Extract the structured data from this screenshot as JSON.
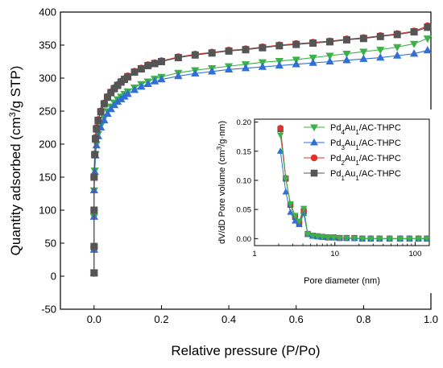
{
  "colors": {
    "red": "#e0302b",
    "green": "#3cb34a",
    "blue": "#2f6fd6",
    "gray": "#555555",
    "axis": "#000000"
  },
  "chart_data": [
    {
      "type": "line",
      "name": "main-isotherm",
      "xlabel": "Relative pressure (P/Po)",
      "ylabel_parts": [
        "Quantity adsorbed (cm",
        "3",
        "/g STP)"
      ],
      "xlim": [
        -0.1,
        1.0
      ],
      "ylim": [
        -50,
        400
      ],
      "xticks": [
        0.0,
        0.2,
        0.4,
        0.6,
        0.8,
        1.0
      ],
      "xtick_labels": [
        "0.0",
        "0.2",
        "0.4",
        "0.6",
        "0.8",
        "1.0"
      ],
      "yticks": [
        -50,
        0,
        50,
        100,
        150,
        200,
        250,
        300,
        350,
        400
      ],
      "ytick_labels": [
        "-50",
        "0",
        "50",
        "100",
        "150",
        "200",
        "250",
        "300",
        "350",
        "400"
      ],
      "series": [
        {
          "key": "pd4au1",
          "color_key": "green",
          "marker": "triangle-down",
          "x": [
            0.0,
            0.0,
            0.0,
            0.0,
            0.002,
            0.004,
            0.007,
            0.012,
            0.02,
            0.03,
            0.04,
            0.05,
            0.06,
            0.07,
            0.08,
            0.09,
            0.1,
            0.12,
            0.14,
            0.16,
            0.18,
            0.2,
            0.25,
            0.3,
            0.35,
            0.4,
            0.45,
            0.5,
            0.55,
            0.6,
            0.65,
            0.7,
            0.75,
            0.8,
            0.85,
            0.9,
            0.95,
            0.99
          ],
          "y": [
            5,
            40,
            90,
            130,
            160,
            185,
            200,
            215,
            228,
            240,
            250,
            257,
            263,
            268,
            272,
            276,
            280,
            286,
            291,
            295,
            299,
            302,
            308,
            312,
            315,
            318,
            321,
            324,
            326,
            328,
            331,
            334,
            337,
            340,
            343,
            347,
            352,
            360
          ]
        },
        {
          "key": "pd3au1",
          "color_key": "blue",
          "marker": "triangle-up",
          "x": [
            0.0,
            0.0,
            0.0,
            0.0,
            0.002,
            0.004,
            0.007,
            0.012,
            0.02,
            0.03,
            0.04,
            0.05,
            0.06,
            0.07,
            0.08,
            0.09,
            0.1,
            0.12,
            0.14,
            0.16,
            0.18,
            0.2,
            0.25,
            0.3,
            0.35,
            0.4,
            0.45,
            0.5,
            0.55,
            0.6,
            0.65,
            0.7,
            0.75,
            0.8,
            0.85,
            0.9,
            0.95,
            0.99
          ],
          "y": [
            5,
            40,
            90,
            130,
            158,
            183,
            198,
            212,
            225,
            236,
            246,
            253,
            259,
            264,
            268,
            272,
            276,
            282,
            287,
            291,
            295,
            298,
            303,
            307,
            310,
            313,
            315,
            317,
            319,
            321,
            323,
            325,
            327,
            329,
            331,
            334,
            337,
            342
          ]
        },
        {
          "key": "pd2au1",
          "color_key": "red",
          "marker": "circle",
          "x": [
            0.0,
            0.0,
            0.0,
            0.0,
            0.002,
            0.004,
            0.007,
            0.012,
            0.02,
            0.03,
            0.04,
            0.05,
            0.06,
            0.07,
            0.08,
            0.09,
            0.1,
            0.12,
            0.14,
            0.16,
            0.18,
            0.2,
            0.25,
            0.3,
            0.35,
            0.4,
            0.45,
            0.5,
            0.55,
            0.6,
            0.65,
            0.7,
            0.75,
            0.8,
            0.85,
            0.9,
            0.95,
            0.99
          ],
          "y": [
            5,
            45,
            100,
            150,
            185,
            210,
            225,
            237,
            250,
            262,
            272,
            279,
            285,
            290,
            295,
            299,
            303,
            310,
            315,
            320,
            323,
            326,
            332,
            336,
            339,
            342,
            344,
            347,
            350,
            352,
            354,
            356,
            359,
            361,
            364,
            367,
            371,
            379
          ]
        },
        {
          "key": "pd1au1",
          "color_key": "gray",
          "marker": "square",
          "x": [
            0.0,
            0.0,
            0.0,
            0.0,
            0.002,
            0.004,
            0.007,
            0.012,
            0.02,
            0.03,
            0.04,
            0.05,
            0.06,
            0.07,
            0.08,
            0.09,
            0.1,
            0.12,
            0.14,
            0.16,
            0.18,
            0.2,
            0.25,
            0.3,
            0.35,
            0.4,
            0.45,
            0.5,
            0.55,
            0.6,
            0.65,
            0.7,
            0.75,
            0.8,
            0.85,
            0.9,
            0.95,
            0.99
          ],
          "y": [
            5,
            45,
            100,
            150,
            184,
            208,
            223,
            236,
            249,
            261,
            271,
            278,
            284,
            289,
            294,
            298,
            302,
            309,
            314,
            319,
            322,
            325,
            331,
            335,
            338,
            341,
            343,
            346,
            349,
            351,
            353,
            355,
            358,
            360,
            363,
            366,
            370,
            377
          ]
        }
      ]
    },
    {
      "type": "line",
      "name": "inset-pore-distribution",
      "xscale": "log",
      "xlabel": "Pore diameter (nm)",
      "ylabel_parts": [
        "dV/dD Pore volume (cm",
        "3",
        "/g·nm)"
      ],
      "xlim": [
        1,
        150
      ],
      "ylim": [
        -0.012,
        0.205
      ],
      "xticks": [
        1,
        10,
        100
      ],
      "xtick_labels": [
        "1",
        "10",
        "100"
      ],
      "yticks": [
        0.0,
        0.05,
        0.1,
        0.15,
        0.2
      ],
      "ytick_labels": [
        "0.00",
        "0.05",
        "0.10",
        "0.15",
        "0.20"
      ],
      "legend_position": "top-right",
      "series": [
        {
          "key": "pd4au1",
          "color_key": "green",
          "marker": "triangle-down",
          "name_parts": [
            "Pd",
            "4",
            "Au",
            "1",
            "/AC-THPC"
          ],
          "x": [
            2.1,
            2.45,
            2.8,
            3.2,
            3.6,
            4.1,
            4.6,
            5.3,
            6.1,
            7.0,
            8.2,
            9.7,
            11.5,
            14,
            17.5,
            22,
            28,
            36,
            48,
            65,
            85,
            110,
            140
          ],
          "y": [
            0.178,
            0.103,
            0.06,
            0.04,
            0.03,
            0.052,
            0.008,
            0.005,
            0.004,
            0.003,
            0.002,
            0.002,
            0.001,
            0.001,
            0.001,
            0.0,
            0.0,
            0.0,
            0.0,
            0.0,
            0.0,
            0.0,
            0.0
          ]
        },
        {
          "key": "pd3au1",
          "color_key": "blue",
          "marker": "triangle-up",
          "name_parts": [
            "Pd",
            "3",
            "Au",
            "1",
            "/AC-THPC"
          ],
          "x": [
            2.1,
            2.45,
            2.8,
            3.2,
            3.6,
            4.1,
            4.6,
            5.3,
            6.1,
            7.0,
            8.2,
            9.7,
            11.5,
            14,
            17.5,
            22,
            28,
            36,
            48,
            65,
            85,
            110,
            140
          ],
          "y": [
            0.15,
            0.08,
            0.045,
            0.03,
            0.024,
            0.043,
            0.007,
            0.004,
            0.003,
            0.002,
            0.002,
            0.001,
            0.001,
            0.001,
            0.0,
            0.0,
            0.0,
            0.0,
            0.0,
            0.0,
            0.0,
            0.0,
            0.0
          ]
        },
        {
          "key": "pd2au1",
          "color_key": "red",
          "marker": "circle",
          "name_parts": [
            "Pd",
            "2",
            "Au",
            "1",
            "/AC-THPC"
          ],
          "x": [
            2.1,
            2.45,
            2.8,
            3.2,
            3.6,
            4.1,
            4.6,
            5.3,
            6.1,
            7.0,
            8.2,
            9.7,
            11.5,
            14,
            17.5,
            22,
            28,
            36,
            48,
            65,
            85,
            110,
            140
          ],
          "y": [
            0.19,
            0.104,
            0.059,
            0.038,
            0.028,
            0.048,
            0.008,
            0.005,
            0.004,
            0.003,
            0.002,
            0.002,
            0.001,
            0.001,
            0.001,
            0.0,
            0.0,
            0.0,
            0.0,
            0.0,
            0.0,
            0.0,
            0.0
          ]
        },
        {
          "key": "pd1au1",
          "color_key": "gray",
          "marker": "square",
          "name_parts": [
            "Pd",
            "1",
            "Au",
            "1",
            "/AC-THPC"
          ],
          "x": [
            2.1,
            2.45,
            2.8,
            3.2,
            3.6,
            4.1,
            4.6,
            5.3,
            6.1,
            7.0,
            8.2,
            9.7,
            11.5,
            14,
            17.5,
            22,
            28,
            36,
            48,
            65,
            85,
            110,
            140
          ],
          "y": [
            0.188,
            0.103,
            0.058,
            0.037,
            0.027,
            0.047,
            0.008,
            0.005,
            0.004,
            0.003,
            0.002,
            0.002,
            0.001,
            0.001,
            0.001,
            0.0,
            0.0,
            0.0,
            0.0,
            0.0,
            0.0,
            0.0,
            0.0
          ]
        }
      ]
    }
  ]
}
